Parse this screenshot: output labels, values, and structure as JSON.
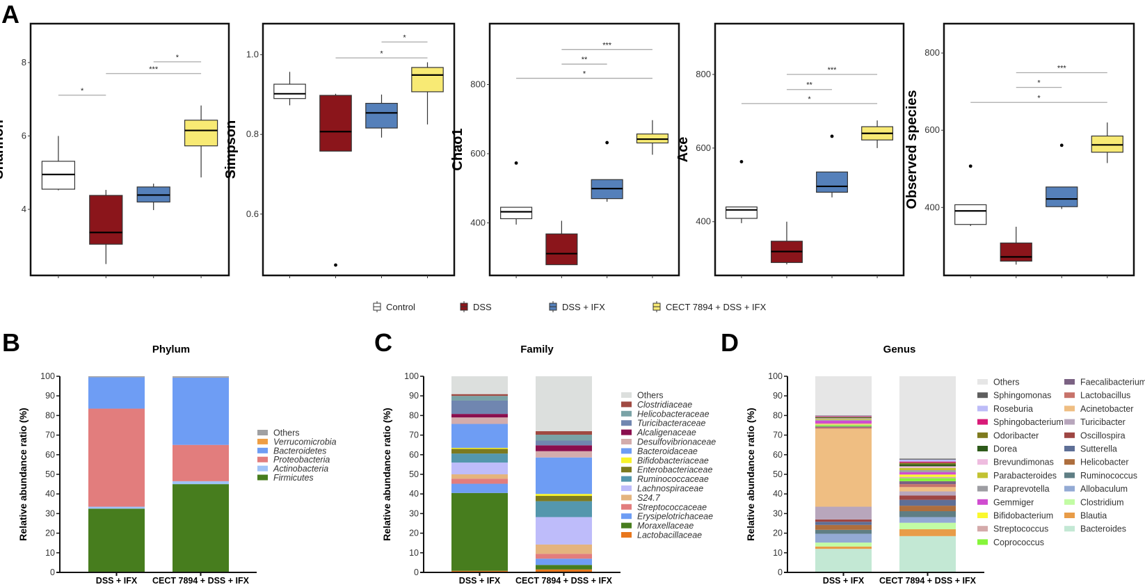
{
  "panel_letters": [
    "A",
    "B",
    "C",
    "D"
  ],
  "groups": [
    {
      "name": "Control",
      "color": "#FFFFFF"
    },
    {
      "name": "DSS",
      "color": "#8B151B"
    },
    {
      "name": "DSS + IFX",
      "color": "#5580BA"
    },
    {
      "name": "CECT 7894 + DSS + IFX",
      "color": "#F8EA74"
    }
  ],
  "chart_data": [
    {
      "type": "box",
      "ylabel": "Shannon",
      "ylim": [
        2.2,
        9.06
      ],
      "ticks": [
        4,
        6,
        8
      ],
      "tick_labels": [
        "4",
        "6",
        "8"
      ],
      "boxes": [
        {
          "group": "Control",
          "whisker_low": 4.52,
          "q1": 4.55,
          "median": 4.95,
          "q3": 5.31,
          "whisker_high": 6.0,
          "outliers": []
        },
        {
          "group": "DSS",
          "whisker_low": 2.51,
          "q1": 3.05,
          "median": 3.37,
          "q3": 4.38,
          "whisker_high": 4.53,
          "outliers": []
        },
        {
          "group": "DSS + IFX",
          "whisker_low": 3.98,
          "q1": 4.2,
          "median": 4.39,
          "q3": 4.61,
          "whisker_high": 4.7,
          "outliers": []
        },
        {
          "group": "CECT 7894 + DSS + IFX",
          "whisker_low": 4.87,
          "q1": 5.73,
          "median": 6.15,
          "q3": 6.43,
          "whisker_high": 6.83,
          "outliers": []
        }
      ],
      "significance": [
        {
          "from": 0,
          "to": 1,
          "y": 7.11,
          "label": "*"
        },
        {
          "from": 1,
          "to": 3,
          "y": 7.7,
          "label": "***"
        },
        {
          "from": 2,
          "to": 3,
          "y": 8.02,
          "label": "*"
        }
      ]
    },
    {
      "type": "box",
      "ylabel": "Simpson",
      "ylim": [
        0.446,
        1.078
      ],
      "ticks": [
        0.6,
        0.8,
        1.0
      ],
      "tick_labels": [
        "0.6",
        "0.8",
        "1.0"
      ],
      "boxes": [
        {
          "group": "Control",
          "whisker_low": 0.873,
          "q1": 0.89,
          "median": 0.902,
          "q3": 0.926,
          "whisker_high": 0.957,
          "outliers": []
        },
        {
          "group": "DSS",
          "whisker_low": 0.758,
          "q1": 0.758,
          "median": 0.807,
          "q3": 0.898,
          "whisker_high": 0.902,
          "outliers": [
            0.472
          ]
        },
        {
          "group": "DSS + IFX",
          "whisker_low": 0.792,
          "q1": 0.816,
          "median": 0.854,
          "q3": 0.878,
          "whisker_high": 0.9,
          "outliers": []
        },
        {
          "group": "CECT 7894 + DSS + IFX",
          "whisker_low": 0.825,
          "q1": 0.907,
          "median": 0.949,
          "q3": 0.968,
          "whisker_high": 0.981,
          "outliers": []
        }
      ],
      "significance": [
        {
          "from": 1,
          "to": 3,
          "y": 0.992,
          "label": "*"
        },
        {
          "from": 2,
          "to": 3,
          "y": 1.032,
          "label": "*"
        }
      ]
    },
    {
      "type": "box",
      "ylabel": "Chao1",
      "ylim": [
        248,
        976
      ],
      "ticks": [
        400,
        600,
        800
      ],
      "tick_labels": [
        "400",
        "600",
        "800"
      ],
      "boxes": [
        {
          "group": "Control",
          "whisker_low": 395,
          "q1": 412,
          "median": 432,
          "q3": 445,
          "whisker_high": 445,
          "outliers": [
            573
          ]
        },
        {
          "group": "DSS",
          "whisker_low": 279,
          "q1": 279,
          "median": 311,
          "q3": 368,
          "whisker_high": 406,
          "outliers": []
        },
        {
          "group": "DSS + IFX",
          "whisker_low": 461,
          "q1": 470,
          "median": 499,
          "q3": 525,
          "whisker_high": 525,
          "outliers": [
            632
          ]
        },
        {
          "group": "CECT 7894 + DSS + IFX",
          "whisker_low": 597,
          "q1": 631,
          "median": 642,
          "q3": 657,
          "whisker_high": 697,
          "outliers": []
        }
      ],
      "significance": [
        {
          "from": 0,
          "to": 3,
          "y": 818,
          "label": "*"
        },
        {
          "from": 1,
          "to": 2,
          "y": 859,
          "label": "**"
        },
        {
          "from": 1,
          "to": 3,
          "y": 901,
          "label": "***"
        }
      ]
    },
    {
      "type": "box",
      "ylabel": "Ace",
      "ylim": [
        254,
        938
      ],
      "ticks": [
        400,
        600,
        800
      ],
      "tick_labels": [
        "400",
        "600",
        "800"
      ],
      "boxes": [
        {
          "group": "Control",
          "whisker_low": 396,
          "q1": 409,
          "median": 432,
          "q3": 440,
          "whisker_high": 440,
          "outliers": [
            563
          ]
        },
        {
          "group": "DSS",
          "whisker_low": 284,
          "q1": 289,
          "median": 319,
          "q3": 347,
          "whisker_high": 400,
          "outliers": []
        },
        {
          "group": "DSS + IFX",
          "whisker_low": 466,
          "q1": 480,
          "median": 496,
          "q3": 535,
          "whisker_high": 535,
          "outliers": [
            632
          ]
        },
        {
          "group": "CECT 7894 + DSS + IFX",
          "whisker_low": 600,
          "q1": 622,
          "median": 640,
          "q3": 658,
          "whisker_high": 675,
          "outliers": []
        }
      ],
      "significance": [
        {
          "from": 0,
          "to": 3,
          "y": 721,
          "label": "*"
        },
        {
          "from": 1,
          "to": 2,
          "y": 759,
          "label": "**"
        },
        {
          "from": 1,
          "to": 3,
          "y": 800,
          "label": "***"
        }
      ]
    },
    {
      "type": "box",
      "ylabel": "Observed species",
      "ylim": [
        224,
        876
      ],
      "ticks": [
        400,
        600,
        800
      ],
      "tick_labels": [
        "400",
        "600",
        "800"
      ],
      "boxes": [
        {
          "group": "Control",
          "whisker_low": 352,
          "q1": 356,
          "median": 391,
          "q3": 407,
          "whisker_high": 407,
          "outliers": [
            507
          ]
        },
        {
          "group": "DSS",
          "whisker_low": 252,
          "q1": 261,
          "median": 272,
          "q3": 308,
          "whisker_high": 350,
          "outliers": []
        },
        {
          "group": "DSS + IFX",
          "whisker_low": 396,
          "q1": 402,
          "median": 422,
          "q3": 453,
          "whisker_high": 453,
          "outliers": [
            561
          ]
        },
        {
          "group": "CECT 7894 + DSS + IFX",
          "whisker_low": 515,
          "q1": 543,
          "median": 562,
          "q3": 585,
          "whisker_high": 620,
          "outliers": []
        }
      ],
      "significance": [
        {
          "from": 0,
          "to": 3,
          "y": 672,
          "label": "*"
        },
        {
          "from": 1,
          "to": 2,
          "y": 711,
          "label": "*"
        },
        {
          "from": 1,
          "to": 3,
          "y": 749,
          "label": "***"
        }
      ]
    },
    {
      "type": "stacked_bar",
      "title": "Phylum",
      "ylabel": "Relative abundance ratio (%)",
      "ylim": [
        0,
        100
      ],
      "italic_legend": true,
      "categories": [
        "DSS + IFX",
        "CECT 7894 + DSS + IFX"
      ],
      "series": [
        {
          "name": "Firmicutes",
          "color": "#477D1E",
          "values": [
            32.5,
            45.0
          ]
        },
        {
          "name": "Actinobacteria",
          "color": "#9FC3F7",
          "values": [
            1.0,
            1.5
          ]
        },
        {
          "name": "Proteobacteria",
          "color": "#E27D7D",
          "values": [
            50.0,
            18.5
          ]
        },
        {
          "name": "Bacteroidetes",
          "color": "#6E9DF4",
          "values": [
            16.0,
            34.3
          ]
        },
        {
          "name": "Verrucomicrobia",
          "color": "#EE9E45",
          "values": [
            0.0,
            0.1
          ]
        },
        {
          "name": "Others",
          "color": "#A0A0A2",
          "values": [
            0.5,
            0.6
          ]
        }
      ]
    },
    {
      "type": "stacked_bar",
      "title": "Family",
      "ylabel": "Relative abundance ratio (%)",
      "ylim": [
        0,
        100
      ],
      "italic_legend": true,
      "categories": [
        "DSS + IFX",
        "CECT 7894 + DSS + IFX"
      ],
      "series": [
        {
          "name": "Lactobacillaceae",
          "color": "#E8771D",
          "values": [
            0.8,
            1.5
          ]
        },
        {
          "name": "Moraxellaceae",
          "color": "#477D1E",
          "values": [
            39.7,
            2.3
          ]
        },
        {
          "name": "Erysipelotrichaceae",
          "color": "#6E9DF4",
          "values": [
            4.7,
            3.2
          ]
        },
        {
          "name": "Streptococcaceae",
          "color": "#E27D7D",
          "values": [
            2.6,
            2.5
          ]
        },
        {
          "name": "S24.7",
          "color": "#E4B47E",
          "values": [
            2.2,
            4.7
          ]
        },
        {
          "name": "Lachnospiraceae",
          "color": "#BEBCFA",
          "values": [
            6.0,
            14.0
          ]
        },
        {
          "name": "Ruminococcaceae",
          "color": "#5497AD",
          "values": [
            4.6,
            8.1
          ]
        },
        {
          "name": "Enterobacteriaceae",
          "color": "#7C7A1F",
          "values": [
            2.4,
            2.7
          ]
        },
        {
          "name": "Bifidobacteriaceae",
          "color": "#F8F32A",
          "values": [
            0.5,
            1.0
          ]
        },
        {
          "name": "Bacteroidaceae",
          "color": "#6E9DF4",
          "values": [
            12.2,
            18.6
          ]
        },
        {
          "name": "Desulfovibrionaceae",
          "color": "#D3ACAC",
          "values": [
            3.3,
            3.2
          ]
        },
        {
          "name": "Alcaligenaceae",
          "color": "#8A0E4E",
          "values": [
            1.8,
            3.0
          ]
        },
        {
          "name": "Turicibacteraceae",
          "color": "#7086B0",
          "values": [
            6.8,
            2.4
          ]
        },
        {
          "name": "Helicobacteraceae",
          "color": "#7AA3A6",
          "values": [
            2.4,
            3.0
          ]
        },
        {
          "name": "Clostridiaceae",
          "color": "#A04A42",
          "values": [
            0.9,
            1.8
          ]
        },
        {
          "name": "Others",
          "color": "#DCDFDD",
          "values": [
            9.1,
            28.0
          ]
        }
      ]
    },
    {
      "type": "stacked_bar",
      "title": "Genus",
      "ylabel": "Relative abundance ratio (%)",
      "ylim": [
        0,
        100
      ],
      "italic_legend": false,
      "categories": [
        "DSS + IFX",
        "CECT 7894 + DSS + IFX"
      ],
      "series": [
        {
          "name": "Bacteroides",
          "color": "#C3E8D4",
          "values": [
            12.0,
            18.5
          ]
        },
        {
          "name": "Blautia",
          "color": "#E89C48",
          "values": [
            1.2,
            3.5
          ]
        },
        {
          "name": "Clostridium",
          "color": "#C2FCA4",
          "values": [
            2.0,
            3.3
          ]
        },
        {
          "name": "Allobaculum",
          "color": "#93AAD4",
          "values": [
            4.5,
            2.9
          ]
        },
        {
          "name": "Ruminococcus",
          "color": "#5F7E84",
          "values": [
            2.0,
            3.0
          ]
        },
        {
          "name": "Helicobacter",
          "color": "#AD6E3E",
          "values": [
            2.5,
            2.8
          ]
        },
        {
          "name": "Sutterella",
          "color": "#5E6F96",
          "values": [
            1.6,
            3.0
          ]
        },
        {
          "name": "Oscillospira",
          "color": "#9E4643",
          "values": [
            1.2,
            2.2
          ]
        },
        {
          "name": "Turicibacter",
          "color": "#B8A6BC",
          "values": [
            6.5,
            2.1
          ]
        },
        {
          "name": "Acinetobacter",
          "color": "#EFBE82",
          "values": [
            39.8,
            2.2
          ]
        },
        {
          "name": "Lactobacillus",
          "color": "#C7736A",
          "values": [
            0.6,
            1.5
          ]
        },
        {
          "name": "Faecalibacterium",
          "color": "#7B6283",
          "values": [
            0.5,
            1.5
          ]
        },
        {
          "name": "Coprococcus",
          "color": "#86F53A",
          "values": [
            0.7,
            1.5
          ]
        },
        {
          "name": "Streptococcus",
          "color": "#D4AAAA",
          "values": [
            0.3,
            0.7
          ]
        },
        {
          "name": "Bifidobacterium",
          "color": "#FAF82E",
          "values": [
            0.4,
            1.2
          ]
        },
        {
          "name": "Gemmiger",
          "color": "#D04CD0",
          "values": [
            1.6,
            1.2
          ]
        },
        {
          "name": "Paraprevotella",
          "color": "#9D9DA2",
          "values": [
            0.4,
            1.0
          ]
        },
        {
          "name": "Parabacteroides",
          "color": "#C2C232",
          "values": [
            0.5,
            1.2
          ]
        },
        {
          "name": "Brevundimonas",
          "color": "#EEBCDF",
          "values": [
            0.3,
            0.8
          ]
        },
        {
          "name": "Dorea",
          "color": "#2E5A1A",
          "values": [
            0.4,
            1.0
          ]
        },
        {
          "name": "Odoribacter",
          "color": "#7E7A1E",
          "values": [
            0.3,
            0.8
          ]
        },
        {
          "name": "Sphingobacterium",
          "color": "#D81B78",
          "values": [
            0.3,
            0.6
          ]
        },
        {
          "name": "Roseburia",
          "color": "#BDBCF8",
          "values": [
            0.2,
            1.0
          ]
        },
        {
          "name": "Sphingomonas",
          "color": "#5E5E5E",
          "values": [
            0.2,
            0.5
          ]
        },
        {
          "name": "Others",
          "color": "#E6E6E6",
          "values": [
            20.0,
            42.0
          ]
        }
      ]
    }
  ]
}
